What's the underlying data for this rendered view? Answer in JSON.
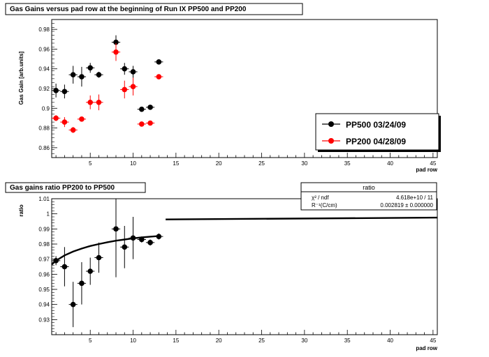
{
  "chart_data": [
    {
      "type": "scatter",
      "title": "Gas Gains versus pad row at the beginning of Run IX PP500 and PP200",
      "xlabel": "pad row",
      "ylabel": "Gas Gain [arb.units]",
      "xlim": [
        0.5,
        45.5
      ],
      "ylim": [
        0.85,
        0.99
      ],
      "xticks": [
        5,
        10,
        15,
        20,
        25,
        30,
        35,
        40,
        45
      ],
      "yticks": [
        "0.86",
        "0.88",
        "0.9",
        "0.92",
        "0.94",
        "0.96",
        "0.98"
      ],
      "legend_position": "bottom-right",
      "series": [
        {
          "name": "PP500 03/24/09",
          "color": "#000000",
          "points": [
            {
              "x": 1,
              "y": 0.918,
              "err": 0.007
            },
            {
              "x": 2,
              "y": 0.917,
              "err": 0.007
            },
            {
              "x": 3,
              "y": 0.934,
              "err": 0.009
            },
            {
              "x": 4,
              "y": 0.932,
              "err": 0.01
            },
            {
              "x": 5,
              "y": 0.941,
              "err": 0.005
            },
            {
              "x": 6,
              "y": 0.934,
              "err": 0.003
            },
            {
              "x": 8,
              "y": 0.967,
              "err": 0.007
            },
            {
              "x": 9,
              "y": 0.94,
              "err": 0.006
            },
            {
              "x": 10,
              "y": 0.937,
              "err": 0.006
            },
            {
              "x": 11,
              "y": 0.899,
              "err": 0.002
            },
            {
              "x": 12,
              "y": 0.901,
              "err": 0.002
            },
            {
              "x": 13,
              "y": 0.947,
              "err": 0.002
            }
          ]
        },
        {
          "name": "PP200 04/28/09",
          "color": "#ff0000",
          "points": [
            {
              "x": 1,
              "y": 0.89,
              "err": 0.003
            },
            {
              "x": 2,
              "y": 0.886,
              "err": 0.005
            },
            {
              "x": 3,
              "y": 0.878,
              "err": 0.003
            },
            {
              "x": 4,
              "y": 0.889,
              "err": 0.002
            },
            {
              "x": 5,
              "y": 0.906,
              "err": 0.007
            },
            {
              "x": 6,
              "y": 0.906,
              "err": 0.008
            },
            {
              "x": 8,
              "y": 0.957,
              "err": 0.009
            },
            {
              "x": 9,
              "y": 0.919,
              "err": 0.009
            },
            {
              "x": 10,
              "y": 0.922,
              "err": 0.009
            },
            {
              "x": 11,
              "y": 0.884,
              "err": 0.002
            },
            {
              "x": 12,
              "y": 0.885,
              "err": 0.002
            },
            {
              "x": 13,
              "y": 0.932,
              "err": 0.002
            }
          ]
        }
      ]
    },
    {
      "type": "scatter",
      "title": "Gas gains ratio PP200 to PP500",
      "xlabel": "pad row",
      "ylabel": "ratio",
      "xlim": [
        0.5,
        45.5
      ],
      "ylim": [
        0.92,
        1.01
      ],
      "xticks": [
        5,
        10,
        15,
        20,
        25,
        30,
        35,
        40,
        45
      ],
      "yticks": [
        "0.93",
        "0.94",
        "0.95",
        "0.96",
        "0.97",
        "0.98",
        "0.99",
        "1",
        "1.01"
      ],
      "series": [
        {
          "name": "ratio",
          "color": "#000000",
          "points": [
            {
              "x": 1,
              "y": 0.969,
              "err": 0.003
            },
            {
              "x": 2,
              "y": 0.965,
              "err": 0.013
            },
            {
              "x": 3,
              "y": 0.94,
              "err": 0.015
            },
            {
              "x": 4,
              "y": 0.954,
              "err": 0.014
            },
            {
              "x": 5,
              "y": 0.962,
              "err": 0.009
            },
            {
              "x": 6,
              "y": 0.971,
              "err": 0.01
            },
            {
              "x": 8,
              "y": 0.99,
              "err": 0.032
            },
            {
              "x": 9,
              "y": 0.978,
              "err": 0.014
            },
            {
              "x": 10,
              "y": 0.984,
              "err": 0.014
            },
            {
              "x": 11,
              "y": 0.983,
              "err": 0.002
            },
            {
              "x": 12,
              "y": 0.981,
              "err": 0.002
            },
            {
              "x": 13,
              "y": 0.985,
              "err": 0.002
            }
          ]
        }
      ],
      "fit_segments": [
        {
          "x": [
            0.5,
            1,
            2,
            3,
            4,
            5,
            6,
            7,
            8,
            9,
            10,
            11,
            12,
            13.2
          ],
          "y": [
            0.9665,
            0.969,
            0.9725,
            0.975,
            0.977,
            0.9787,
            0.98,
            0.9812,
            0.9822,
            0.983,
            0.9838,
            0.9844,
            0.9849,
            0.9854
          ]
        },
        {
          "x": [
            13.8,
            45.5
          ],
          "y": [
            0.9963,
            0.9975
          ]
        }
      ],
      "stats_box": {
        "title": "ratio",
        "rows": [
          {
            "label": "χ² / ndf",
            "value": "4.618e+10 / 11"
          },
          {
            "label": "R⁻¹(C/cm)",
            "value": "0.002819 ± 0.000000"
          }
        ]
      }
    }
  ]
}
